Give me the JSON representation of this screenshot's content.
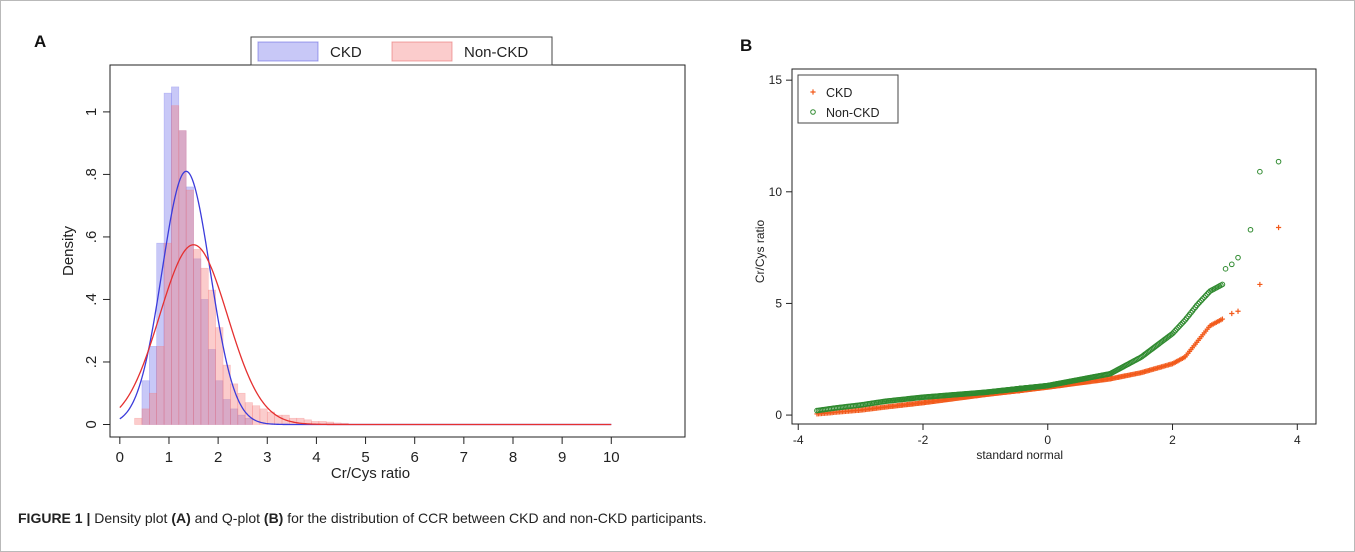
{
  "caption": {
    "label": "FIGURE 1 |",
    "text_1": " Density plot ",
    "ref_a": "(A)",
    "text_2": " and Q-plot ",
    "ref_b": "(B)",
    "text_3": " for the distribution of CCR between CKD and non-CKD participants."
  },
  "chart_data": [
    {
      "panel_label": "A",
      "type": "bar",
      "subtype": "histogram-with-density-curves",
      "xlabel": "Cr/Cys ratio",
      "ylabel": "Density",
      "xlim": [
        -0.2,
        11.5
      ],
      "ylim": [
        -0.04,
        1.15
      ],
      "x_ticks": [
        0,
        1,
        2,
        3,
        4,
        5,
        6,
        7,
        8,
        9,
        10
      ],
      "x_tick_labels": [
        "0",
        "1",
        "2",
        "3",
        "4",
        "5",
        "6",
        "7",
        "8",
        "9",
        "10"
      ],
      "y_ticks": [
        0,
        0.2,
        0.4,
        0.6,
        0.8,
        1
      ],
      "y_tick_labels": [
        "0",
        ".2",
        ".4",
        ".6",
        ".8",
        "1"
      ],
      "grid": false,
      "legend_position": "top-center",
      "bin_width": 0.15,
      "series": [
        {
          "name": "CKD",
          "color": "#3b3bdb",
          "fill": "rgba(110,110,235,0.38)",
          "bins_start": [
            0.45,
            0.6,
            0.75,
            0.9,
            1.05,
            1.2,
            1.35,
            1.5,
            1.65,
            1.8,
            1.95,
            2.1,
            2.25,
            2.4,
            2.55
          ],
          "values": [
            0.14,
            0.25,
            0.58,
            1.06,
            1.08,
            0.94,
            0.76,
            0.53,
            0.4,
            0.24,
            0.14,
            0.08,
            0.05,
            0.03,
            0.02
          ],
          "normal_fit": {
            "mean": 1.35,
            "sd": 0.49,
            "peak": 0.81
          }
        },
        {
          "name": "Non-CKD",
          "color": "#e53030",
          "fill": "rgba(245,120,120,0.38)",
          "bins_start": [
            0.3,
            0.45,
            0.6,
            0.75,
            0.9,
            1.05,
            1.2,
            1.35,
            1.5,
            1.65,
            1.8,
            1.95,
            2.1,
            2.25,
            2.4,
            2.55,
            2.7,
            2.85,
            3.0,
            3.15,
            3.3,
            3.45,
            3.6,
            3.75,
            3.9,
            4.05,
            4.2,
            4.35,
            4.5
          ],
          "values": [
            0.02,
            0.05,
            0.1,
            0.25,
            0.58,
            1.02,
            0.94,
            0.75,
            0.56,
            0.5,
            0.43,
            0.31,
            0.19,
            0.13,
            0.1,
            0.07,
            0.06,
            0.05,
            0.04,
            0.03,
            0.03,
            0.02,
            0.02,
            0.015,
            0.01,
            0.01,
            0.008,
            0.005,
            0.004
          ],
          "normal_fit": {
            "mean": 1.5,
            "sd": 0.69,
            "peak": 0.575
          }
        }
      ]
    },
    {
      "panel_label": "B",
      "type": "scatter",
      "subtype": "quantile-normal-plot",
      "xlabel": "standard normal",
      "ylabel": "Cr/Cys ratio",
      "xlim": [
        -4.1,
        4.3
      ],
      "ylim": [
        -0.4,
        15.5
      ],
      "x_ticks": [
        -4,
        -2,
        0,
        2,
        4
      ],
      "x_tick_labels": [
        "-4",
        "-2",
        "0",
        "2",
        "4"
      ],
      "y_ticks": [
        0,
        5,
        10,
        15
      ],
      "y_tick_labels": [
        "0",
        "5",
        "10",
        "15"
      ],
      "grid": false,
      "legend_position": "top-left",
      "series": [
        {
          "name": "CKD",
          "marker": "plus",
          "color": "#f25a1b",
          "quantile_curve": [
            [
              -3.7,
              0.05
            ],
            [
              -3.3,
              0.15
            ],
            [
              -3.0,
              0.22
            ],
            [
              -2.6,
              0.36
            ],
            [
              -2.0,
              0.55
            ],
            [
              -1.0,
              0.92
            ],
            [
              0.0,
              1.25
            ],
            [
              1.0,
              1.62
            ],
            [
              1.5,
              1.9
            ],
            [
              2.0,
              2.3
            ],
            [
              2.2,
              2.6
            ],
            [
              2.4,
              3.3
            ],
            [
              2.6,
              4.0
            ],
            [
              2.8,
              4.3
            ]
          ],
          "tail_points": [
            [
              2.95,
              4.55
            ],
            [
              3.05,
              4.65
            ],
            [
              3.4,
              5.85
            ],
            [
              3.7,
              8.4
            ]
          ]
        },
        {
          "name": "Non-CKD",
          "marker": "circle",
          "color": "#2f8a2f",
          "quantile_curve": [
            [
              -3.7,
              0.2
            ],
            [
              -3.4,
              0.32
            ],
            [
              -3.0,
              0.45
            ],
            [
              -2.6,
              0.62
            ],
            [
              -2.0,
              0.8
            ],
            [
              -1.0,
              1.02
            ],
            [
              0.0,
              1.32
            ],
            [
              1.0,
              1.85
            ],
            [
              1.5,
              2.6
            ],
            [
              2.0,
              3.65
            ],
            [
              2.2,
              4.25
            ],
            [
              2.4,
              4.95
            ],
            [
              2.6,
              5.55
            ],
            [
              2.8,
              5.85
            ]
          ],
          "tail_points": [
            [
              2.85,
              6.55
            ],
            [
              2.95,
              6.75
            ],
            [
              3.05,
              7.05
            ],
            [
              3.25,
              8.3
            ],
            [
              3.4,
              10.9
            ],
            [
              3.7,
              11.35
            ]
          ]
        }
      ]
    }
  ]
}
